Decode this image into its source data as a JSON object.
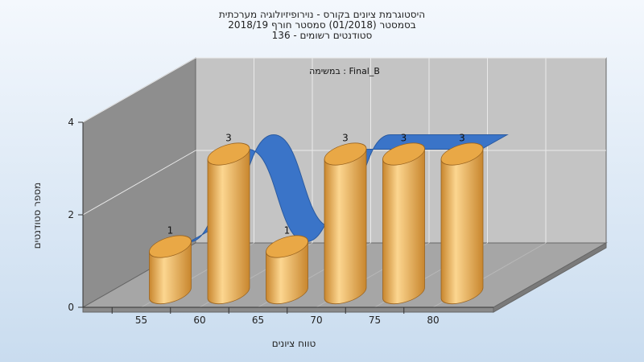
{
  "chart_data": {
    "type": "bar",
    "title_lines": [
      "היסטוגרמת ציונים בקורס - נוירופיזיולוגיה מערכתית",
      "בסמסטר  (01/2018)  סמסטר חורף 2018/19",
      "סטודנטים רשומים - 136"
    ],
    "annotation": "במשימה : Final_B",
    "xlabel": "טווח ציונים",
    "ylabel": "מספר סטודנטים",
    "categories": [
      "55",
      "60",
      "65",
      "70",
      "75",
      "80"
    ],
    "values": [
      1,
      3,
      1,
      3,
      3,
      3
    ],
    "data_labels": [
      "1",
      "3",
      "1",
      "3",
      "3",
      "3"
    ],
    "ylim": [
      0,
      4
    ],
    "y_ticks": [
      0,
      2,
      4
    ],
    "x_ticks": [
      "55",
      "60",
      "65",
      "70",
      "75",
      "80"
    ],
    "grid": true,
    "colors": {
      "background_top": "#f4f8fd",
      "background_bottom": "#c9dcef",
      "back_wall": "#c4c4c4",
      "left_wall": "#8e8e8e",
      "floor": "#a6a6a6",
      "bar_light": "#fcd690",
      "bar_dark": "#c8862e",
      "bar_top": "#e9a846",
      "ribbon": "#3a74c8",
      "ribbon_dark": "#2a5aa0"
    }
  }
}
